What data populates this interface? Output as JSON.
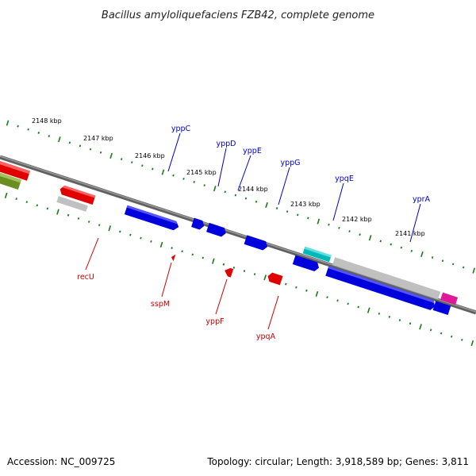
{
  "title": "Bacillus amyloliquefaciens FZB42, complete genome",
  "footer": {
    "accession": "Accession: NC_009725",
    "summary": "Topology: circular; Length: 3,918,589 bp; Genes: 3,811"
  },
  "ticks": [
    "2148 kbp",
    "2147 kbp",
    "2146 kbp",
    "2145 kbp",
    "2144 kbp",
    "2143 kbp",
    "2142 kbp",
    "2141 kbp"
  ],
  "colors": {
    "forward_label": "#0000cc",
    "reverse_label": "#cc0000",
    "tick_marks": "#1a7a1a",
    "backbone": "#777777"
  },
  "genes_top": [
    {
      "name": "yppC",
      "color": "#0000cc"
    },
    {
      "name": "yppD",
      "color": "#0000cc"
    },
    {
      "name": "yppE",
      "color": "#0000cc"
    },
    {
      "name": "yppG",
      "color": "#0000cc"
    },
    {
      "name": "ypqE",
      "color": "#0000cc"
    },
    {
      "name": "yprA",
      "color": "#0000cc"
    }
  ],
  "genes_bottom": [
    {
      "name": "recU",
      "color": "#cc0000"
    },
    {
      "name": "sspM",
      "color": "#cc0000"
    },
    {
      "name": "yppF",
      "color": "#cc0000"
    },
    {
      "name": "ypqA",
      "color": "#cc0000"
    }
  ]
}
